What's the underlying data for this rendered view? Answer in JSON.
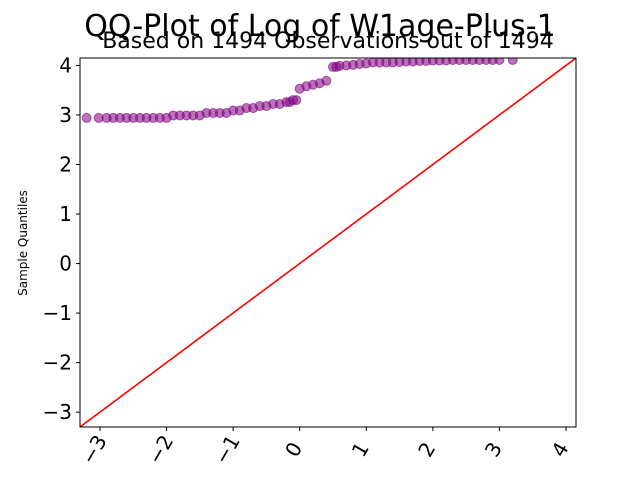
{
  "chart_data": {
    "type": "scatter",
    "title": "QQ-Plot of Log of W1age-Plus-1",
    "subtitle": "Based on 1494 Observations out of 1494",
    "xlabel": "",
    "ylabel": "Sample Quantiles",
    "xlim": [
      -3.3,
      4.15
    ],
    "ylim": [
      -3.3,
      4.15
    ],
    "x_ticks": [
      -3,
      -2,
      -1,
      0,
      1,
      2,
      3,
      4
    ],
    "y_ticks": [
      -3,
      -2,
      -1,
      0,
      1,
      2,
      3,
      4
    ],
    "x_tick_labels": [
      "−3",
      "−2",
      "−1",
      "0",
      "1",
      "2",
      "3",
      "4"
    ],
    "y_tick_labels": [
      "−3",
      "−2",
      "−1",
      "0",
      "1",
      "2",
      "3",
      "4"
    ],
    "grid": false,
    "colors": {
      "points": "#800080",
      "reference_line": "#ff0000"
    },
    "reference_line": {
      "slope": 1,
      "intercept": 0
    },
    "series": [
      {
        "x": [
          -3.2,
          -3.02,
          -2.9,
          -2.8,
          -2.7,
          -2.6,
          -2.5,
          -2.4,
          -2.3,
          -2.2,
          -2.1,
          -2.0,
          -1.9,
          -1.8,
          -1.7,
          -1.6,
          -1.5,
          -1.4,
          -1.3,
          -1.2,
          -1.1,
          -1.0,
          -0.9,
          -0.8,
          -0.7,
          -0.6,
          -0.5,
          -0.4,
          -0.3,
          -0.2,
          -0.15,
          -0.1,
          -0.05,
          0.0,
          0.1,
          0.2,
          0.3,
          0.4,
          0.5,
          0.55,
          0.6,
          0.7,
          0.8,
          0.9,
          1.0,
          1.1,
          1.2,
          1.3,
          1.4,
          1.5,
          1.6,
          1.7,
          1.8,
          1.9,
          2.0,
          2.1,
          2.2,
          2.3,
          2.4,
          2.5,
          2.6,
          2.7,
          2.8,
          2.9,
          3.0,
          3.2
        ],
        "y": [
          2.94,
          2.94,
          2.94,
          2.94,
          2.94,
          2.94,
          2.94,
          2.94,
          2.94,
          2.94,
          2.94,
          2.94,
          2.99,
          2.99,
          2.99,
          2.99,
          2.99,
          3.04,
          3.04,
          3.04,
          3.04,
          3.09,
          3.09,
          3.14,
          3.14,
          3.18,
          3.18,
          3.22,
          3.22,
          3.26,
          3.26,
          3.3,
          3.3,
          3.53,
          3.58,
          3.61,
          3.64,
          3.69,
          3.97,
          3.97,
          3.99,
          4.0,
          4.01,
          4.03,
          4.04,
          4.06,
          4.06,
          4.06,
          4.06,
          4.07,
          4.08,
          4.08,
          4.09,
          4.09,
          4.1,
          4.1,
          4.1,
          4.11,
          4.11,
          4.11,
          4.11,
          4.11,
          4.11,
          4.11,
          4.11,
          4.11
        ]
      }
    ]
  }
}
